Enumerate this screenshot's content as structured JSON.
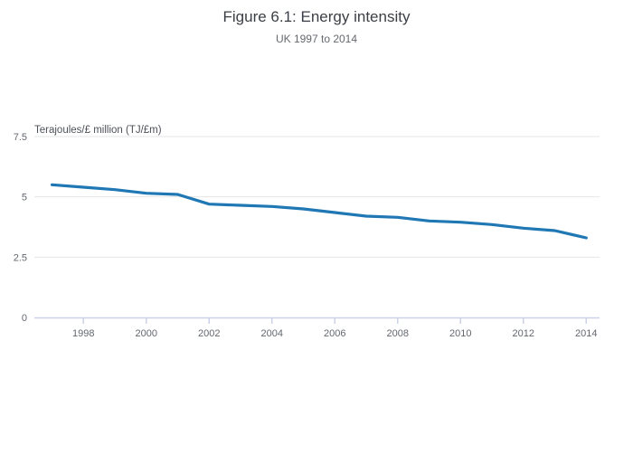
{
  "chart_data": {
    "type": "line",
    "title": "Figure 6.1: Energy intensity",
    "subtitle": "UK 1997 to 2014",
    "xlabel": "",
    "ylabel": "Terajoules/£ million (TJ/£m)",
    "x": [
      1997,
      1998,
      1999,
      2000,
      2001,
      2002,
      2003,
      2004,
      2005,
      2006,
      2007,
      2008,
      2009,
      2010,
      2011,
      2012,
      2013,
      2014
    ],
    "values": [
      5.5,
      5.4,
      5.3,
      5.15,
      5.1,
      4.7,
      4.65,
      4.6,
      4.5,
      4.35,
      4.2,
      4.15,
      4.0,
      3.95,
      3.85,
      3.7,
      3.6,
      3.3
    ],
    "series_name": "Energy intensity",
    "ylim": [
      0,
      7.5
    ],
    "yticks": [
      0,
      2.5,
      5,
      7.5
    ],
    "ytick_labels": [
      "0",
      "2.5",
      "5",
      "7.5"
    ],
    "xticks": [
      1998,
      2000,
      2002,
      2004,
      2006,
      2008,
      2010,
      2012,
      2014
    ],
    "xtick_labels": [
      "1998",
      "2000",
      "2002",
      "2004",
      "2006",
      "2008",
      "2010",
      "2012",
      "2014"
    ],
    "grid": true,
    "legend": false
  },
  "colors": {
    "line": "#1f77b4",
    "gridline": "#e5e5e5",
    "axis_line": "#ccd2e8",
    "tick_label": "#63676e",
    "title": "#3b3f45",
    "subtitle": "#65696f",
    "axis_title": "#4d5158",
    "background": "#ffffff"
  }
}
